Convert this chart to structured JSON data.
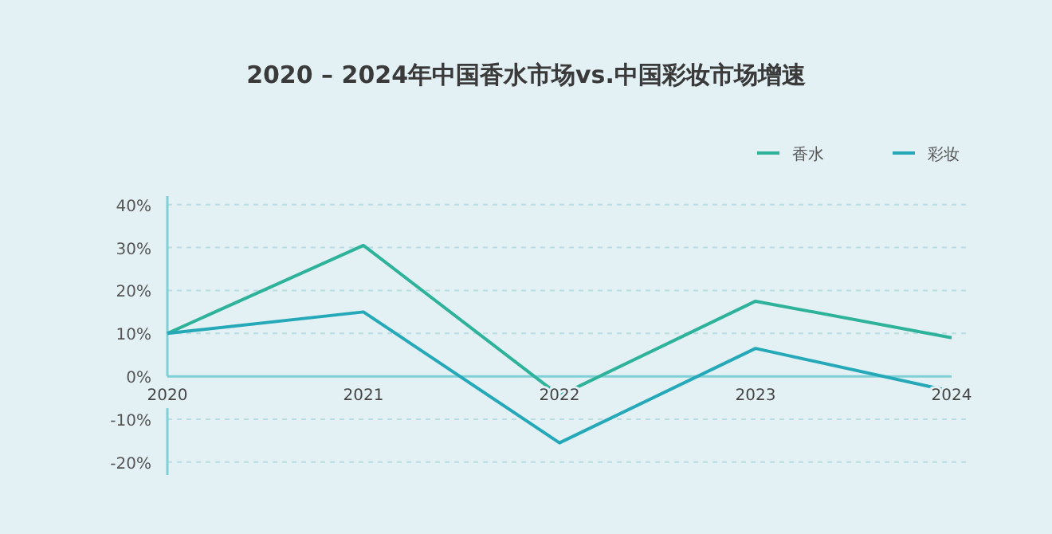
{
  "chart_data": {
    "type": "line",
    "title": "2020 – 2024年中国香水市场vs.中国彩妆市场增速",
    "x": [
      2020,
      2021,
      2022,
      2023,
      2024
    ],
    "xlim": [
      2020,
      2024
    ],
    "xticks": [
      2020,
      2021,
      2022,
      2023,
      2024
    ],
    "ylim": [
      -23,
      42
    ],
    "yticks": [
      {
        "value": -20,
        "label": "-20%"
      },
      {
        "value": -10,
        "label": "-10%"
      },
      {
        "value": 0,
        "label": "0%"
      },
      {
        "value": 10,
        "label": "10%"
      },
      {
        "value": 20,
        "label": "20%"
      },
      {
        "value": 30,
        "label": "30%"
      },
      {
        "value": 40,
        "label": "40%"
      }
    ],
    "series": [
      {
        "name": "香水",
        "color": "#2fb29a",
        "values": [
          10,
          30.5,
          -4.5,
          17.5,
          9
        ]
      },
      {
        "name": "彩妆",
        "color": "#25a8b8",
        "values": [
          10,
          15,
          -15.5,
          6.5,
          -3.5
        ]
      }
    ],
    "grid": "y",
    "legend": "top right",
    "line_style": "solid"
  }
}
